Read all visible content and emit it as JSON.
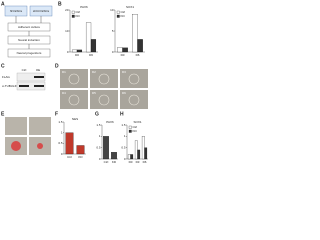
{
  "panels": {
    "A": {
      "label": "A",
      "boxes": [
        "hN ESCs",
        "shCtrl ESCs",
        "Adherent culture",
        "Neural induction",
        "Neural progenitors"
      ]
    },
    "B": {
      "label": "B",
      "charts": [
        {
          "title": "PAX6",
          "categories": [
            "D0",
            "D6"
          ],
          "series": [
            {
              "name": "Ctrl",
              "color": "#ffffff",
              "values": [
                1,
                14
              ]
            },
            {
              "name": "KD",
              "color": "#333333",
              "values": [
                1,
                6
              ]
            }
          ],
          "ylim": [
            0,
            20
          ],
          "yticks": [
            0,
            10,
            20
          ]
        },
        {
          "title": "SOX1",
          "categories": [
            "D0",
            "D6"
          ],
          "series": [
            {
              "name": "Ctrl",
              "color": "#ffffff",
              "values": [
                1,
                9
              ]
            },
            {
              "name": "KD",
              "color": "#333333",
              "values": [
                1,
                3
              ]
            }
          ],
          "ylim": [
            0,
            10
          ],
          "yticks": [
            0,
            5,
            10
          ]
        }
      ]
    },
    "C": {
      "label": "C",
      "lanes": [
        "Ctrl",
        "OE"
      ],
      "rows": [
        "FLAG",
        "α-TUBULIN"
      ]
    },
    "D": {
      "label": "D",
      "images": [
        "D1",
        "D2",
        "D3",
        "D4",
        "D5",
        "D6"
      ]
    },
    "E": {
      "label": "E"
    },
    "F": {
      "label": "F",
      "charts": [
        {
          "title": "NES",
          "categories": [
            "Ctrl",
            "KD"
          ],
          "series": [
            {
              "name": "Ctrl",
              "color": "#c0392b",
              "values": [
                1,
                0.4
              ]
            }
          ],
          "ylim": [
            0,
            1.5
          ],
          "yticks": [
            0,
            0.5,
            1,
            1.5
          ]
        }
      ]
    },
    "G": {
      "label": "G",
      "charts": [
        {
          "title": "PAX6",
          "categories": [
            "Ctrl",
            "KD"
          ],
          "series": [
            {
              "name": "Ctrl",
              "color": "#444444",
              "values": [
                1,
                0.3
              ]
            }
          ],
          "ylim": [
            0,
            1.5
          ],
          "yticks": [
            0,
            0.5,
            1,
            1.5
          ]
        }
      ]
    },
    "H": {
      "label": "H",
      "charts": [
        {
          "title": "SOX1",
          "categories": [
            "D0",
            "D3",
            "D6"
          ],
          "series": [
            {
              "name": "Ctrl",
              "color": "#ffffff",
              "values": [
                0.2,
                0.8,
                1
              ]
            },
            {
              "name": "KD",
              "color": "#333333",
              "values": [
                0.2,
                0.4,
                0.5
              ]
            }
          ],
          "ylim": [
            0,
            1.5
          ],
          "yticks": [
            0,
            0.5,
            1,
            1.5
          ]
        }
      ]
    }
  }
}
